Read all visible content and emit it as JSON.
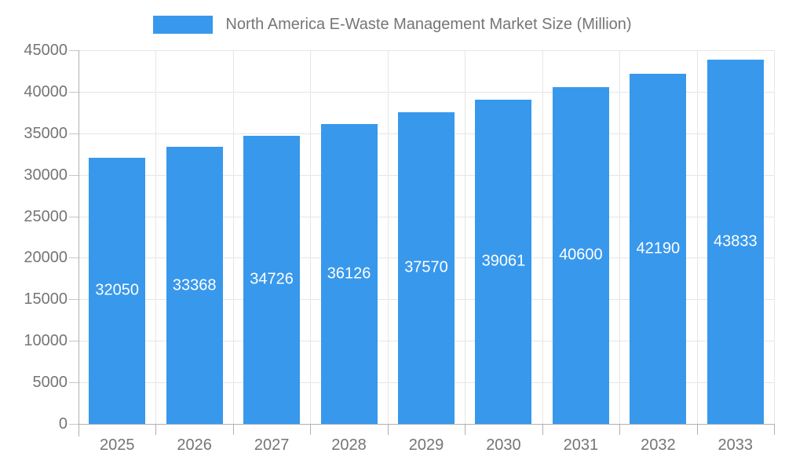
{
  "chart_data": {
    "type": "bar",
    "title": "North America E-Waste Management Market Size (Million)",
    "legend": {
      "position": "top",
      "entries": [
        "North America E-Waste Management Market Size (Million)"
      ]
    },
    "categories": [
      "2025",
      "2026",
      "2027",
      "2028",
      "2029",
      "2030",
      "2031",
      "2032",
      "2033"
    ],
    "series": [
      {
        "name": "North America E-Waste Management Market Size (Million)",
        "values": [
          32050,
          33368,
          34726,
          36126,
          37570,
          39061,
          40600,
          42190,
          43833
        ]
      }
    ],
    "value_labels": [
      "32050",
      "33368",
      "34726",
      "36126",
      "37570",
      "39061",
      "40600",
      "42190",
      "43833"
    ],
    "xlabel": "",
    "ylabel": "",
    "ylim": [
      0,
      45000
    ],
    "ytick_step": 5000,
    "ytick_labels": [
      "0",
      "5000",
      "10000",
      "15000",
      "20000",
      "25000",
      "30000",
      "35000",
      "40000",
      "45000"
    ],
    "grid": true,
    "colors": {
      "bar": "#3898ec",
      "value_label": "#ffffff",
      "grid_line": "#e6e6e6",
      "axis_line": "#b0b0b0",
      "tick_mark": "#c6c6c6",
      "axis_text": "#757575",
      "background": "#ffffff"
    }
  }
}
